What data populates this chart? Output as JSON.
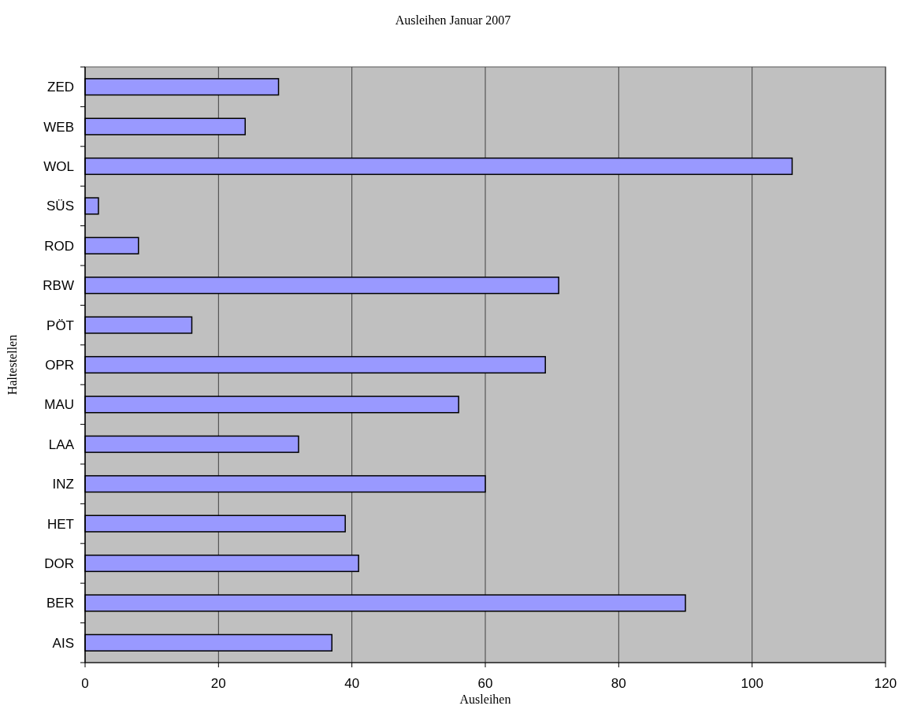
{
  "chart_data": {
    "type": "bar",
    "orientation": "horizontal",
    "title": "Ausleihen Januar 2007",
    "xlabel": "Ausleihen",
    "ylabel": "Haltestellen",
    "categories": [
      "ZED",
      "WEB",
      "WOL",
      "SÜS",
      "ROD",
      "RBW",
      "PÖT",
      "OPR",
      "MAU",
      "LAA",
      "INZ",
      "HET",
      "DOR",
      "BER",
      "AIS"
    ],
    "values": [
      29,
      24,
      106,
      2,
      8,
      71,
      16,
      69,
      56,
      32,
      60,
      39,
      41,
      90,
      37
    ],
    "color": "#9999ff",
    "xlim": [
      0,
      120
    ],
    "xticks": [
      0,
      20,
      40,
      60,
      80,
      100,
      120
    ],
    "grid": "x"
  }
}
